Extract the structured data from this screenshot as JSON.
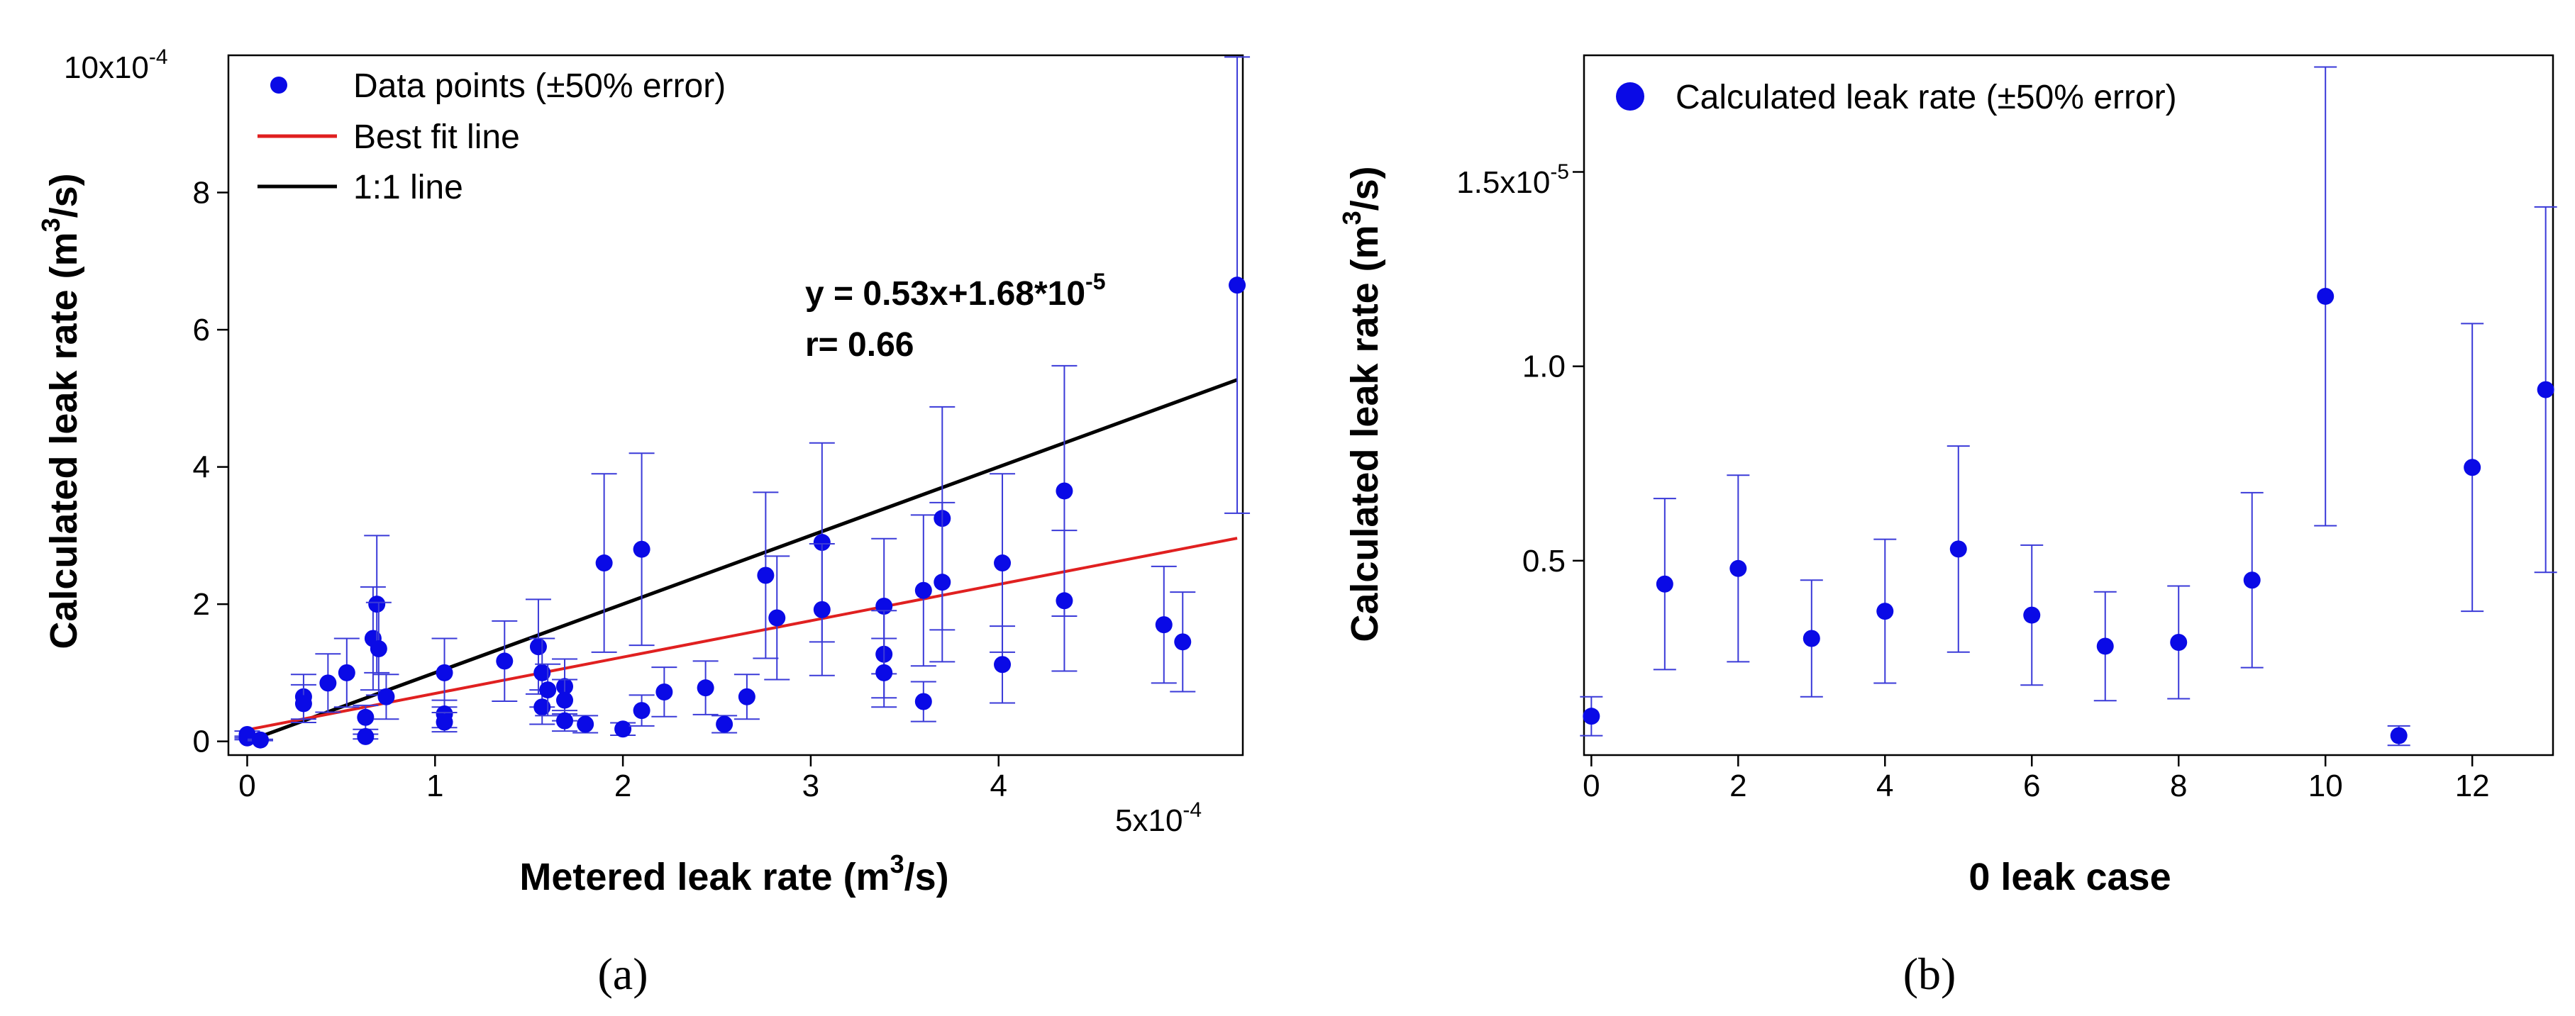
{
  "chart_data": [
    {
      "type": "scatter",
      "panel_label": "(a)",
      "xlabel": "Metered leak rate (m",
      "xlabel_sup": "3",
      "xlabel_end": "/s)",
      "ylabel": "Calculated leak rate (m",
      "ylabel_sup": "3",
      "ylabel_end": "/s)",
      "xlim": [
        -0.1,
        5.3
      ],
      "ylim": [
        -0.2,
        10
      ],
      "x_ticks": [
        "0",
        "1",
        "2",
        "3",
        "4"
      ],
      "x_tick_values": [
        0,
        1,
        2,
        3,
        4
      ],
      "x_exponent_label": "5x10",
      "x_exponent_sup": "-4",
      "y_ticks": [
        "0",
        "2",
        "4",
        "6",
        "8"
      ],
      "y_tick_values": [
        0,
        2,
        4,
        6,
        8
      ],
      "y_top_label": "10x10",
      "y_top_sup": "-4",
      "units_scale": "1e-4 m^3/s",
      "legend": {
        "points": "Data points (±50% error)",
        "fit": "Best fit line",
        "one_to_one": "1:1 line"
      },
      "annotation_line1": "y = 0.53x+1.68*10",
      "annotation_sup": "-5",
      "annotation_line2": "r= 0.66",
      "colors": {
        "points": "#0a0ae6",
        "errorbar": "#3a3ad8",
        "fit": "#e02020",
        "one_to_one": "#000000"
      },
      "fit_line": {
        "slope": 0.53,
        "intercept": 0.168,
        "x_range": [
          0,
          5.27
        ]
      },
      "one_to_one_line": {
        "x_range": [
          0,
          5.27
        ]
      },
      "error_fraction": 0.5,
      "points": [
        {
          "x": 0.0,
          "y": 0.1
        },
        {
          "x": 0.0,
          "y": 0.05
        },
        {
          "x": 0.07,
          "y": 0.02
        },
        {
          "x": 0.3,
          "y": 0.65
        },
        {
          "x": 0.3,
          "y": 0.55
        },
        {
          "x": 0.43,
          "y": 0.85
        },
        {
          "x": 0.53,
          "y": 1.0
        },
        {
          "x": 0.63,
          "y": 0.35
        },
        {
          "x": 0.63,
          "y": 0.07
        },
        {
          "x": 0.67,
          "y": 1.5
        },
        {
          "x": 0.69,
          "y": 2.0
        },
        {
          "x": 0.7,
          "y": 1.35
        },
        {
          "x": 0.74,
          "y": 0.65
        },
        {
          "x": 1.05,
          "y": 1.0
        },
        {
          "x": 1.05,
          "y": 0.4
        },
        {
          "x": 1.05,
          "y": 0.28
        },
        {
          "x": 1.37,
          "y": 1.17
        },
        {
          "x": 1.55,
          "y": 1.38
        },
        {
          "x": 1.57,
          "y": 1.0
        },
        {
          "x": 1.57,
          "y": 0.5
        },
        {
          "x": 1.6,
          "y": 0.75
        },
        {
          "x": 1.69,
          "y": 0.8
        },
        {
          "x": 1.69,
          "y": 0.6
        },
        {
          "x": 1.69,
          "y": 0.3
        },
        {
          "x": 1.8,
          "y": 0.25
        },
        {
          "x": 1.9,
          "y": 2.6
        },
        {
          "x": 2.0,
          "y": 0.18
        },
        {
          "x": 2.1,
          "y": 2.8
        },
        {
          "x": 2.1,
          "y": 0.45
        },
        {
          "x": 2.22,
          "y": 0.72
        },
        {
          "x": 2.44,
          "y": 0.78
        },
        {
          "x": 2.54,
          "y": 0.25
        },
        {
          "x": 2.66,
          "y": 0.65
        },
        {
          "x": 2.76,
          "y": 2.42
        },
        {
          "x": 2.82,
          "y": 1.8
        },
        {
          "x": 3.06,
          "y": 2.9
        },
        {
          "x": 3.06,
          "y": 1.92
        },
        {
          "x": 3.39,
          "y": 1.97
        },
        {
          "x": 3.39,
          "y": 1.27
        },
        {
          "x": 3.39,
          "y": 1.0
        },
        {
          "x": 3.6,
          "y": 2.2
        },
        {
          "x": 3.6,
          "y": 0.58
        },
        {
          "x": 3.7,
          "y": 3.25
        },
        {
          "x": 3.7,
          "y": 2.32
        },
        {
          "x": 4.02,
          "y": 2.6
        },
        {
          "x": 4.02,
          "y": 1.12
        },
        {
          "x": 4.35,
          "y": 3.65
        },
        {
          "x": 4.35,
          "y": 2.05
        },
        {
          "x": 4.88,
          "y": 1.7
        },
        {
          "x": 4.98,
          "y": 1.45
        },
        {
          "x": 5.27,
          "y": 6.65
        }
      ]
    },
    {
      "type": "scatter",
      "panel_label": "(b)",
      "xlabel": "0 leak case",
      "ylabel": "Calculated leak rate (m",
      "ylabel_sup": "3",
      "ylabel_end": "/s)",
      "xlim": [
        -0.1,
        13.1
      ],
      "ylim": [
        0,
        1.8
      ],
      "x_ticks": [
        "0",
        "2",
        "4",
        "6",
        "8",
        "10",
        "12"
      ],
      "x_tick_values": [
        0,
        2,
        4,
        6,
        8,
        10,
        12
      ],
      "y_ticks": [
        "0.5",
        "1.0"
      ],
      "y_tick_values": [
        0.5,
        1.0
      ],
      "y_top_label": "1.5x10",
      "y_top_sup": "-5",
      "y_top_value": 1.5,
      "units_scale": "1e-5 m^3/s",
      "legend": {
        "points": "Calculated leak rate (±50% error)"
      },
      "colors": {
        "points": "#0a0ae6",
        "errorbar": "#3a3ad8"
      },
      "error_fraction": 0.5,
      "points": [
        {
          "x": 0,
          "y": 0.1
        },
        {
          "x": 1,
          "y": 0.44
        },
        {
          "x": 2,
          "y": 0.48
        },
        {
          "x": 3,
          "y": 0.3
        },
        {
          "x": 4,
          "y": 0.37
        },
        {
          "x": 5,
          "y": 0.53
        },
        {
          "x": 6,
          "y": 0.36
        },
        {
          "x": 7,
          "y": 0.28
        },
        {
          "x": 8,
          "y": 0.29
        },
        {
          "x": 9,
          "y": 0.45
        },
        {
          "x": 10,
          "y": 1.18
        },
        {
          "x": 11,
          "y": 0.05
        },
        {
          "x": 12,
          "y": 0.74
        },
        {
          "x": 13,
          "y": 0.94
        }
      ]
    }
  ]
}
